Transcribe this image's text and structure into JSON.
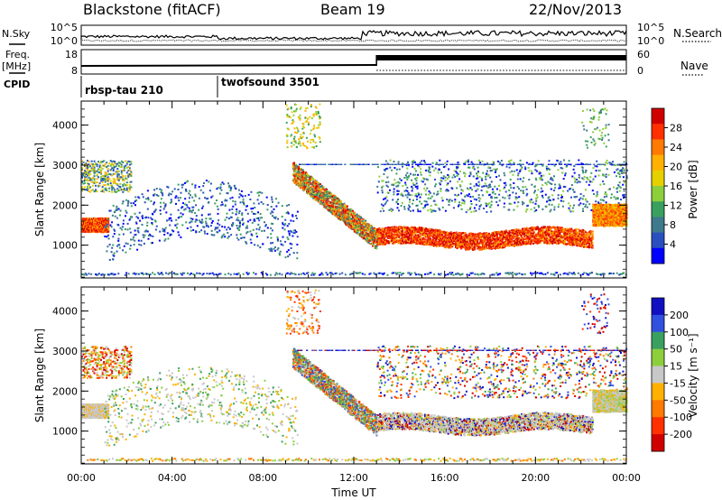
{
  "header": {
    "title": "Blackstone (fitACF)",
    "beam": "Beam 19",
    "date": "22/Nov/2013"
  },
  "left_labels": {
    "nsky": "N.Sky",
    "freq_line1": "Freq.",
    "freq_line2": "[MHz]",
    "cpid": "CPID"
  },
  "right_labels": {
    "nsearch": "N.Search",
    "nave": "Nave"
  },
  "noise_panel": {
    "left_ticks": [
      "10^5",
      "10^0"
    ],
    "right_ticks": [
      "10^5",
      "10^0"
    ]
  },
  "freq_panel": {
    "left_ticks": [
      "18",
      "8"
    ],
    "right_ticks": [
      "60",
      "0"
    ]
  },
  "cpid_segments": [
    {
      "label": "rbsp-tau 210",
      "start_hour": 0
    },
    {
      "label": "twofsound 3501",
      "start_hour": 6
    }
  ],
  "power_colorbar": {
    "label": "Power [dB]",
    "ticks": [
      "28",
      "24",
      "20",
      "16",
      "12",
      "8",
      "4"
    ],
    "colors": [
      "#d00000",
      "#ff3000",
      "#ff7a00",
      "#ffb000",
      "#e6d000",
      "#8ccf3c",
      "#3aa060",
      "#3c7a8c",
      "#2a50c0",
      "#0000ff"
    ]
  },
  "velocity_colorbar": {
    "label": "Velocity [m s⁻¹]",
    "ticks": [
      "200",
      "100",
      "50",
      "15",
      "-15",
      "-50",
      "-100",
      "-200"
    ],
    "colors": [
      "#1010c0",
      "#3050e0",
      "#3aa060",
      "#8ccf3c",
      "#c8c8c8",
      "#ffb000",
      "#ff7a00",
      "#ff3000",
      "#d00000"
    ]
  },
  "range_axis_label": "Slant Range [km]",
  "x_axis": {
    "label": "Time UT",
    "ticks": [
      "00:00",
      "04:00",
      "08:00",
      "12:00",
      "16:00",
      "20:00",
      "00:00"
    ]
  },
  "chart_data": [
    {
      "type": "heatmap",
      "title": "Power",
      "xlabel": "Time UT",
      "ylabel": "Slant Range [km]",
      "xlim": [
        0,
        24
      ],
      "ylim": [
        180,
        4600
      ],
      "yticks": [
        1000,
        2000,
        3000,
        4000
      ],
      "color_label": "Power [dB]",
      "color_range": [
        0,
        32
      ],
      "features": [
        {
          "name": "early band",
          "t_start": 0,
          "t_end": 1.2,
          "range_km": 1450,
          "power_db": 26
        },
        {
          "name": "morning diffuse echoes",
          "t_start": 2,
          "t_end": 8,
          "range_km": 2200,
          "power_db": 6
        },
        {
          "name": "descending band",
          "t_start": 9.3,
          "t_end": 13,
          "range_start_km": 2700,
          "range_end_km": 1000,
          "power_db": 24
        },
        {
          "name": "main band",
          "t_start": 13,
          "t_end": 22.5,
          "range_km": 1150,
          "power_db": 28
        },
        {
          "name": "late band",
          "t_start": 22.5,
          "t_end": 24,
          "range_km": 1700,
          "power_db": 22
        },
        {
          "name": "ground scatter near 200 km",
          "t_start": 0,
          "t_end": 24,
          "range_km": 200,
          "power_db": 8
        }
      ]
    },
    {
      "type": "heatmap",
      "title": "Velocity",
      "xlabel": "Time UT",
      "ylabel": "Slant Range [km]",
      "xlim": [
        0,
        24
      ],
      "ylim": [
        180,
        4600
      ],
      "yticks": [
        1000,
        2000,
        3000,
        4000
      ],
      "color_label": "Velocity [m s⁻¹]",
      "color_range": [
        -250,
        250
      ],
      "features": [
        {
          "name": "early band",
          "t_start": 0,
          "t_end": 1.2,
          "range_km": 1450,
          "velocity": -15
        },
        {
          "name": "descending band",
          "t_start": 9.3,
          "t_end": 13,
          "range_start_km": 2700,
          "range_end_km": 1000,
          "velocity": 40
        },
        {
          "name": "main band",
          "t_start": 13,
          "t_end": 22.5,
          "range_km": 1150,
          "velocity": 0
        },
        {
          "name": "late band",
          "t_start": 22.5,
          "t_end": 24,
          "range_km": 1700,
          "velocity": -10
        }
      ]
    }
  ]
}
